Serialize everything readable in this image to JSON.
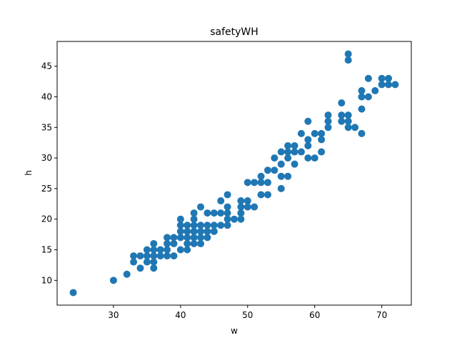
{
  "chart_data": {
    "type": "scatter",
    "title": "safetyWH",
    "xlabel": "w",
    "ylabel": "h",
    "xlim": [
      21.6,
      74.4
    ],
    "ylim": [
      5.95,
      49.05
    ],
    "xticks": [
      30,
      40,
      50,
      60,
      70
    ],
    "yticks": [
      10,
      15,
      20,
      25,
      30,
      35,
      40,
      45
    ],
    "grid": false,
    "legend": "none",
    "marker_color": "#1f77b4",
    "series": [
      {
        "points": [
          [
            24,
            8
          ],
          [
            30,
            10
          ],
          [
            32,
            11
          ],
          [
            33,
            13
          ],
          [
            33,
            14
          ],
          [
            34,
            12
          ],
          [
            34,
            14
          ],
          [
            35,
            13
          ],
          [
            35,
            14
          ],
          [
            35,
            15
          ],
          [
            36,
            12
          ],
          [
            36,
            13
          ],
          [
            36,
            14
          ],
          [
            36,
            15
          ],
          [
            36,
            16
          ],
          [
            37,
            14
          ],
          [
            37,
            15
          ],
          [
            38,
            14
          ],
          [
            38,
            15
          ],
          [
            38,
            16
          ],
          [
            38,
            17
          ],
          [
            39,
            14
          ],
          [
            39,
            16
          ],
          [
            39,
            17
          ],
          [
            40,
            15
          ],
          [
            40,
            17
          ],
          [
            40,
            18
          ],
          [
            40,
            19
          ],
          [
            40,
            20
          ],
          [
            41,
            15
          ],
          [
            41,
            16
          ],
          [
            41,
            17
          ],
          [
            41,
            18
          ],
          [
            41,
            19
          ],
          [
            42,
            16
          ],
          [
            42,
            17
          ],
          [
            42,
            18
          ],
          [
            42,
            19
          ],
          [
            42,
            20
          ],
          [
            42,
            21
          ],
          [
            43,
            16
          ],
          [
            43,
            17
          ],
          [
            43,
            18
          ],
          [
            43,
            19
          ],
          [
            43,
            22
          ],
          [
            44,
            17
          ],
          [
            44,
            18
          ],
          [
            44,
            19
          ],
          [
            44,
            21
          ],
          [
            45,
            18
          ],
          [
            45,
            19
          ],
          [
            45,
            21
          ],
          [
            46,
            19
          ],
          [
            46,
            21
          ],
          [
            46,
            23
          ],
          [
            47,
            19
          ],
          [
            47,
            20
          ],
          [
            47,
            21
          ],
          [
            47,
            22
          ],
          [
            47,
            24
          ],
          [
            48,
            20
          ],
          [
            49,
            20
          ],
          [
            49,
            21
          ],
          [
            49,
            22
          ],
          [
            49,
            23
          ],
          [
            50,
            22
          ],
          [
            50,
            23
          ],
          [
            50,
            26
          ],
          [
            51,
            22
          ],
          [
            51,
            26
          ],
          [
            52,
            24
          ],
          [
            52,
            26
          ],
          [
            52,
            27
          ],
          [
            53,
            24
          ],
          [
            53,
            26
          ],
          [
            53,
            28
          ],
          [
            54,
            28
          ],
          [
            54,
            30
          ],
          [
            55,
            25
          ],
          [
            55,
            27
          ],
          [
            55,
            29
          ],
          [
            55,
            31
          ],
          [
            56,
            27
          ],
          [
            56,
            30
          ],
          [
            56,
            31
          ],
          [
            56,
            32
          ],
          [
            57,
            29
          ],
          [
            57,
            31
          ],
          [
            57,
            32
          ],
          [
            58,
            31
          ],
          [
            58,
            34
          ],
          [
            59,
            30
          ],
          [
            59,
            32
          ],
          [
            59,
            33
          ],
          [
            59,
            36
          ],
          [
            60,
            30
          ],
          [
            60,
            34
          ],
          [
            61,
            31
          ],
          [
            61,
            33
          ],
          [
            61,
            34
          ],
          [
            62,
            35
          ],
          [
            62,
            36
          ],
          [
            62,
            37
          ],
          [
            64,
            36
          ],
          [
            64,
            37
          ],
          [
            64,
            39
          ],
          [
            65,
            35
          ],
          [
            65,
            36
          ],
          [
            65,
            37
          ],
          [
            65,
            46
          ],
          [
            65,
            47
          ],
          [
            66,
            35
          ],
          [
            67,
            34
          ],
          [
            67,
            38
          ],
          [
            67,
            40
          ],
          [
            67,
            41
          ],
          [
            68,
            40
          ],
          [
            68,
            43
          ],
          [
            69,
            41
          ],
          [
            70,
            42
          ],
          [
            70,
            43
          ],
          [
            71,
            42
          ],
          [
            71,
            43
          ],
          [
            72,
            42
          ]
        ]
      }
    ]
  }
}
